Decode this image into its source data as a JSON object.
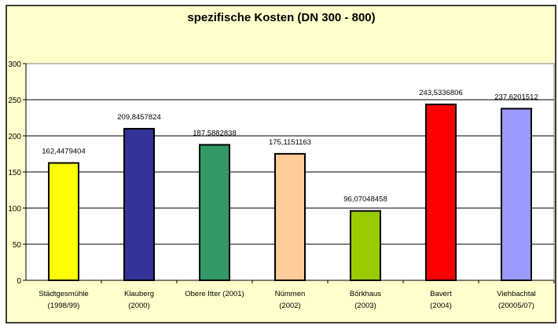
{
  "chart_data": {
    "type": "bar",
    "title": "spezifische Kosten (DN 300 - 800)",
    "xlabel": "",
    "ylabel": "",
    "ylim": [
      0,
      300
    ],
    "yticks": [
      "0",
      "50",
      "100",
      "150",
      "200",
      "250",
      "300"
    ],
    "grid": true,
    "categories": [
      [
        "Städtgesmühle",
        "(1998/99)"
      ],
      [
        "Klauberg",
        "(2000)"
      ],
      [
        "Obere Itter (2001)",
        ""
      ],
      [
        "Nümmen",
        "(2002)"
      ],
      [
        "Börkhaus",
        "(2003)"
      ],
      [
        "Bavert",
        "(2004)"
      ],
      [
        "Viehbachtal",
        "(20005/07)"
      ]
    ],
    "values": [
      162.4479404,
      209.8457824,
      187.5882838,
      175.1151163,
      96.07048458,
      243.5336806,
      237.6201512
    ],
    "data_labels": [
      "162,4479404",
      "209,8457824",
      "187,5882838",
      "175,1151163",
      "96,07048458",
      "243,5336806",
      "237,6201512"
    ],
    "colors": [
      "#FFFF00",
      "#333399",
      "#339966",
      "#FFCC99",
      "#99CC00",
      "#FF0000",
      "#9999FF"
    ],
    "background": "#FFFFCC"
  }
}
